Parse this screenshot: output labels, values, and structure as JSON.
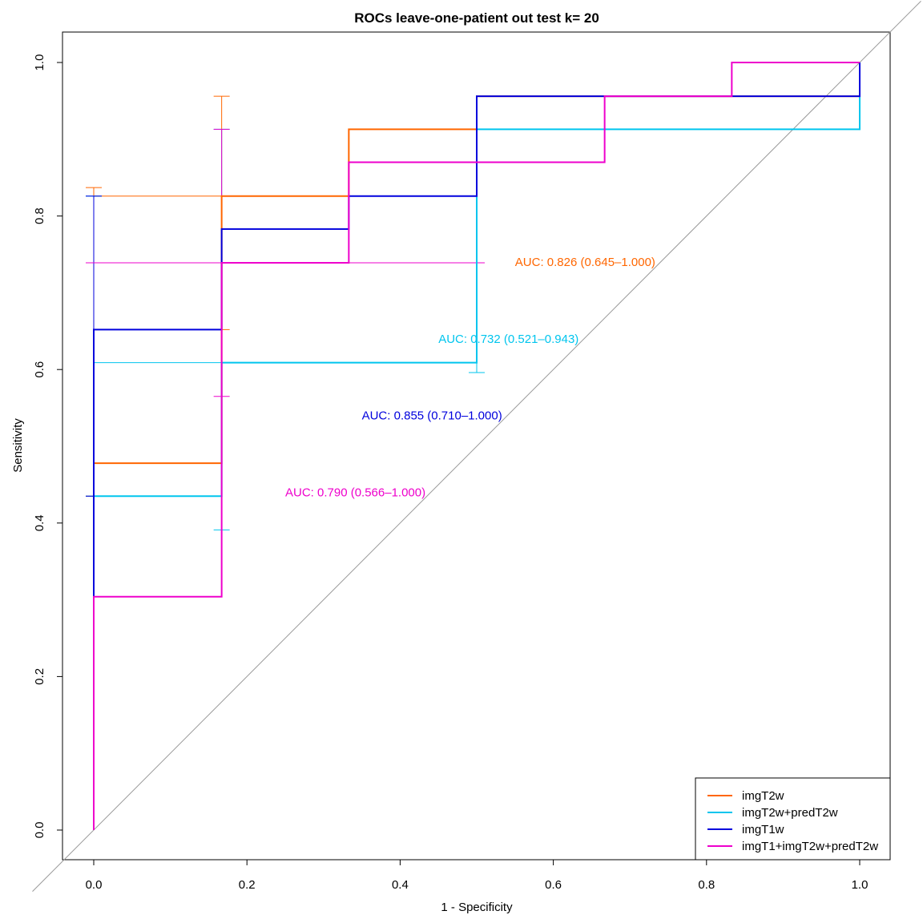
{
  "chart_data": {
    "type": "line",
    "title": "ROCs leave-one-patient out test k= 20",
    "xlabel": "1 - Specificity",
    "ylabel": "Sensitivity",
    "xlim": [
      -0.08,
      1.08
    ],
    "ylim": [
      -0.08,
      1.08
    ],
    "x_ticks": [
      0.0,
      0.2,
      0.4,
      0.6,
      0.8,
      1.0
    ],
    "y_ticks": [
      0.0,
      0.2,
      0.4,
      0.6,
      0.8,
      1.0
    ],
    "x_tick_labels": [
      "0.0",
      "0.2",
      "0.4",
      "0.6",
      "0.8",
      "1.0"
    ],
    "y_tick_labels": [
      "0.0",
      "0.2",
      "0.4",
      "0.6",
      "0.8",
      "1.0"
    ],
    "grid": false,
    "legend_position": "bottom-right",
    "diagonal_reference": true,
    "series": [
      {
        "name": "imgT2w",
        "color": "#ff6600",
        "points": [
          [
            0,
            0
          ],
          [
            0,
            0.478
          ],
          [
            0.167,
            0.478
          ],
          [
            0.167,
            0.826
          ],
          [
            0.333,
            0.826
          ],
          [
            0.333,
            0.913
          ],
          [
            0.5,
            0.913
          ],
          [
            0.5,
            0.956
          ],
          [
            1.0,
            0.956
          ],
          [
            1.0,
            1.0
          ]
        ],
        "ci_bars": [
          {
            "x": 0,
            "lo": 0.435,
            "hi": 0.837
          },
          {
            "x": 0.167,
            "lo": 0.652,
            "hi": 0.956
          }
        ],
        "auc_label": "AUC: 0.826 (0.645–1.000)",
        "auc_label_at": [
          0.55,
          0.74
        ]
      },
      {
        "name": "imgT2w+predT2w",
        "color": "#00c5ee",
        "points": [
          [
            0,
            0
          ],
          [
            0,
            0.435
          ],
          [
            0.167,
            0.435
          ],
          [
            0.167,
            0.609
          ],
          [
            0.5,
            0.609
          ],
          [
            0.5,
            0.913
          ],
          [
            1.0,
            0.913
          ],
          [
            1.0,
            1.0
          ]
        ],
        "ci_bars": [
          {
            "x": 0,
            "lo": 0.435,
            "hi": 0.826
          },
          {
            "x": 0.167,
            "lo": 0.391,
            "hi": 0.913
          },
          {
            "x": 0.5,
            "lo": 0.596,
            "hi": 0.739
          }
        ],
        "auc_label": "AUC: 0.732 (0.521–0.943)",
        "auc_label_at": [
          0.45,
          0.64
        ]
      },
      {
        "name": "imgT1w",
        "color": "#0000dd",
        "points": [
          [
            0,
            0
          ],
          [
            0,
            0.652
          ],
          [
            0.167,
            0.652
          ],
          [
            0.167,
            0.783
          ],
          [
            0.333,
            0.783
          ],
          [
            0.333,
            0.826
          ],
          [
            0.5,
            0.826
          ],
          [
            0.5,
            0.956
          ],
          [
            1.0,
            0.956
          ],
          [
            1.0,
            1.0
          ]
        ],
        "ci_bars": [
          {
            "x": 0,
            "lo": 0.435,
            "hi": 0.826
          }
        ],
        "auc_label": "AUC: 0.855 (0.710–1.000)",
        "auc_label_at": [
          0.35,
          0.54
        ]
      },
      {
        "name": "imgT1+imgT2w+predT2w",
        "color": "#ee00cc",
        "points": [
          [
            0,
            0
          ],
          [
            0,
            0.304
          ],
          [
            0.167,
            0.304
          ],
          [
            0.167,
            0.739
          ],
          [
            0.333,
            0.739
          ],
          [
            0.333,
            0.87
          ],
          [
            0.667,
            0.87
          ],
          [
            0.667,
            0.956
          ],
          [
            0.833,
            0.956
          ],
          [
            0.833,
            1.0
          ],
          [
            1.0,
            1.0
          ]
        ],
        "ci_bars": [
          {
            "x": 0,
            "lo": 0.739,
            "hi": 0.739
          },
          {
            "x": 0.167,
            "lo": 0.565,
            "hi": 0.913
          },
          {
            "x": 0.5,
            "lo": 0.739,
            "hi": 0.739
          }
        ],
        "ci_hlines": [
          {
            "x0": 0,
            "x1": 0.5,
            "y": 0.739
          }
        ],
        "auc_label": "AUC: 0.790 (0.566–1.000)",
        "auc_label_at": [
          0.25,
          0.44
        ]
      }
    ],
    "ci_hlines_extra": [
      {
        "color": "#ff6600",
        "x0": 0,
        "x1": 0.167,
        "y": 0.826
      },
      {
        "color": "#00c5ee",
        "x0": 0,
        "x1": 0.167,
        "y": 0.609
      }
    ]
  }
}
